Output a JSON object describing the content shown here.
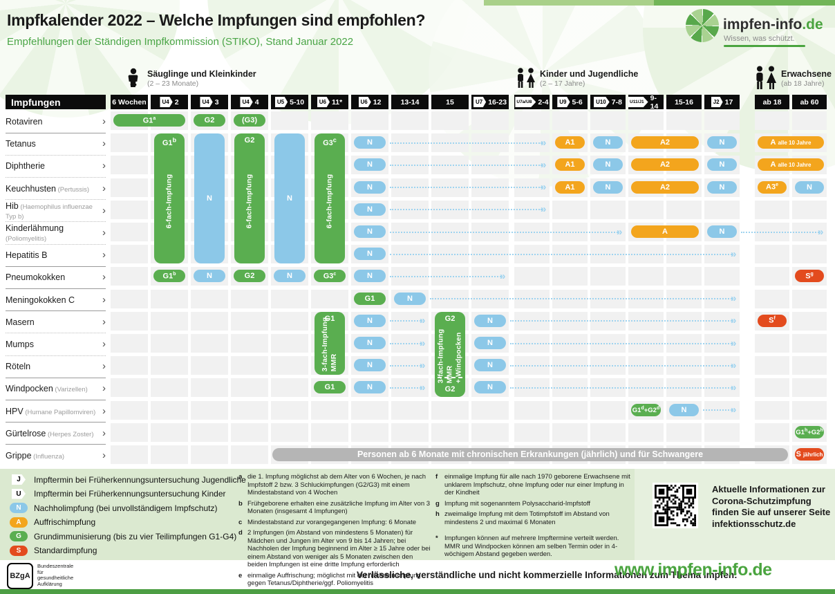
{
  "meta": {
    "title": "Impfkalender 2022 – Welche Impfungen sind empfohlen?",
    "subtitle": "Empfehlungen der Ständigen Impfkommission (STIKO), Stand Januar 2022"
  },
  "logo": {
    "name_main": "impfen-info",
    "name_suffix": ".de",
    "tagline": "Wissen, was schützt."
  },
  "groups": [
    {
      "label": "Säuglinge und Kleinkinder",
      "sub": "(2 – 23 Monate)"
    },
    {
      "label": "Kinder und Jugendliche",
      "sub": "(2 – 17 Jahre)"
    },
    {
      "label": "Erwachsene",
      "sub": "(ab 18 Jahre)"
    }
  ],
  "table": {
    "header": "Impfungen"
  },
  "columns": [
    {
      "label": "6 Wochen"
    },
    {
      "label": "2",
      "badge": "U4"
    },
    {
      "label": "3",
      "badge": "U4"
    },
    {
      "label": "4",
      "badge": "U4"
    },
    {
      "label": "5-10",
      "badge": "U5"
    },
    {
      "label": "11*",
      "badge": "U6"
    },
    {
      "label": "12",
      "badge": "U6"
    },
    {
      "label": "13-14"
    },
    {
      "label": "15"
    },
    {
      "label": "16-23",
      "badge": "U7"
    },
    {
      "label": "2-4",
      "badge": "U7a/U8"
    },
    {
      "label": "5-6",
      "badge": "U9"
    },
    {
      "label": "7-8",
      "badge": "U10"
    },
    {
      "label": "9-14",
      "badge": "U11/J1"
    },
    {
      "label": "15-16"
    },
    {
      "label": "17",
      "badge": "J2"
    },
    {
      "label": "ab 18"
    },
    {
      "label": "ab 60"
    }
  ],
  "rows": [
    {
      "label": "Rotaviren",
      "note": "",
      "sep": "solid"
    },
    {
      "label": "Tetanus",
      "note": "",
      "sep": "dotted"
    },
    {
      "label": "Diphtherie",
      "note": "",
      "sep": "dotted"
    },
    {
      "label": "Keuchhusten",
      "note": "(Pertussis)",
      "sep": "dotted"
    },
    {
      "label": "Hib",
      "note": "(Haemophilus influenzae Typ b)",
      "sep": "dotted"
    },
    {
      "label": "Kinderlähmung",
      "note": "(Poliomyelitis)",
      "sep": "dotted"
    },
    {
      "label": "Hepatitis B",
      "note": "",
      "sep": "solid"
    },
    {
      "label": "Pneumokokken",
      "note": "",
      "sep": "solid"
    },
    {
      "label": "Meningokokken C",
      "note": "",
      "sep": "solid"
    },
    {
      "label": "Masern",
      "note": "",
      "sep": "dotted"
    },
    {
      "label": "Mumps",
      "note": "",
      "sep": "dotted"
    },
    {
      "label": "Röteln",
      "note": "",
      "sep": "solid"
    },
    {
      "label": "Windpocken",
      "note": "(Varizellen)",
      "sep": "solid"
    },
    {
      "label": "HPV",
      "note": "(Humane Papillomviren)",
      "sep": "solid"
    },
    {
      "label": "Gürtelrose",
      "note": "(Herpes Zoster)",
      "sep": "solid"
    },
    {
      "label": "Grippe",
      "note": "(Influenza)",
      "sep": "none"
    }
  ],
  "pills": [
    {
      "r": 1,
      "c": 1,
      "ce": 2,
      "t": "G",
      "p": [
        [
          "G1",
          "a"
        ]
      ]
    },
    {
      "r": 1,
      "c": 3,
      "t": "G",
      "p": [
        [
          "G2",
          ""
        ]
      ]
    },
    {
      "r": 1,
      "c": 4,
      "t": "G",
      "p": [
        [
          "(G3)",
          ""
        ]
      ]
    },
    {
      "r": 2,
      "c": 7,
      "t": "N",
      "p": [
        [
          "N",
          ""
        ]
      ]
    },
    {
      "r": 2,
      "c": 12,
      "t": "A",
      "p": [
        [
          "A1",
          ""
        ]
      ]
    },
    {
      "r": 2,
      "c": 13,
      "t": "N",
      "p": [
        [
          "N",
          ""
        ]
      ]
    },
    {
      "r": 2,
      "c": 14,
      "ce": 15,
      "t": "A",
      "p": [
        [
          "A2",
          ""
        ]
      ]
    },
    {
      "r": 2,
      "c": 16,
      "t": "N",
      "p": [
        [
          "N",
          ""
        ]
      ]
    },
    {
      "r": 2,
      "c": 17,
      "ce": 18,
      "t": "A",
      "p": [
        [
          "A",
          ""
        ]
      ],
      "sfx": "alle 10 Jahre"
    },
    {
      "r": 3,
      "c": 7,
      "t": "N",
      "p": [
        [
          "N",
          ""
        ]
      ]
    },
    {
      "r": 3,
      "c": 12,
      "t": "A",
      "p": [
        [
          "A1",
          ""
        ]
      ]
    },
    {
      "r": 3,
      "c": 13,
      "t": "N",
      "p": [
        [
          "N",
          ""
        ]
      ]
    },
    {
      "r": 3,
      "c": 14,
      "ce": 15,
      "t": "A",
      "p": [
        [
          "A2",
          ""
        ]
      ]
    },
    {
      "r": 3,
      "c": 16,
      "t": "N",
      "p": [
        [
          "N",
          ""
        ]
      ]
    },
    {
      "r": 3,
      "c": 17,
      "ce": 18,
      "t": "A",
      "p": [
        [
          "A",
          ""
        ]
      ],
      "sfx": "alle 10 Jahre"
    },
    {
      "r": 4,
      "c": 7,
      "t": "N",
      "p": [
        [
          "N",
          ""
        ]
      ]
    },
    {
      "r": 4,
      "c": 12,
      "t": "A",
      "p": [
        [
          "A1",
          ""
        ]
      ]
    },
    {
      "r": 4,
      "c": 13,
      "t": "N",
      "p": [
        [
          "N",
          ""
        ]
      ]
    },
    {
      "r": 4,
      "c": 14,
      "ce": 15,
      "t": "A",
      "p": [
        [
          "A2",
          ""
        ]
      ]
    },
    {
      "r": 4,
      "c": 16,
      "t": "N",
      "p": [
        [
          "N",
          ""
        ]
      ]
    },
    {
      "r": 4,
      "c": 17,
      "t": "A",
      "p": [
        [
          "A3",
          "e"
        ]
      ]
    },
    {
      "r": 4,
      "c": 18,
      "t": "N",
      "p": [
        [
          "N",
          ""
        ]
      ]
    },
    {
      "r": 5,
      "c": 7,
      "t": "N",
      "p": [
        [
          "N",
          ""
        ]
      ]
    },
    {
      "r": 6,
      "c": 7,
      "t": "N",
      "p": [
        [
          "N",
          ""
        ]
      ]
    },
    {
      "r": 6,
      "c": 14,
      "ce": 15,
      "t": "A",
      "p": [
        [
          "A",
          ""
        ]
      ]
    },
    {
      "r": 6,
      "c": 16,
      "t": "N",
      "p": [
        [
          "N",
          ""
        ]
      ]
    },
    {
      "r": 7,
      "c": 7,
      "t": "N",
      "p": [
        [
          "N",
          ""
        ]
      ]
    },
    {
      "r": 8,
      "c": 2,
      "t": "G",
      "p": [
        [
          "G1",
          "b"
        ]
      ]
    },
    {
      "r": 8,
      "c": 3,
      "t": "N",
      "p": [
        [
          "N",
          ""
        ]
      ]
    },
    {
      "r": 8,
      "c": 4,
      "t": "G",
      "p": [
        [
          "G2",
          ""
        ]
      ]
    },
    {
      "r": 8,
      "c": 5,
      "t": "N",
      "p": [
        [
          "N",
          ""
        ]
      ]
    },
    {
      "r": 8,
      "c": 6,
      "t": "G",
      "p": [
        [
          "G3",
          "c"
        ]
      ]
    },
    {
      "r": 8,
      "c": 7,
      "t": "N",
      "p": [
        [
          "N",
          ""
        ]
      ]
    },
    {
      "r": 8,
      "c": 18,
      "t": "S",
      "p": [
        [
          "S",
          "g"
        ]
      ]
    },
    {
      "r": 9,
      "c": 7,
      "t": "G",
      "p": [
        [
          "G1",
          ""
        ]
      ]
    },
    {
      "r": 9,
      "c": 8,
      "t": "N",
      "p": [
        [
          "N",
          ""
        ]
      ]
    },
    {
      "r": 10,
      "c": 7,
      "t": "N",
      "p": [
        [
          "N",
          ""
        ]
      ]
    },
    {
      "r": 10,
      "c": 10,
      "t": "N",
      "p": [
        [
          "N",
          ""
        ]
      ]
    },
    {
      "r": 10,
      "c": 17,
      "t": "S",
      "p": [
        [
          "S",
          "f"
        ]
      ]
    },
    {
      "r": 11,
      "c": 7,
      "t": "N",
      "p": [
        [
          "N",
          ""
        ]
      ]
    },
    {
      "r": 11,
      "c": 10,
      "t": "N",
      "p": [
        [
          "N",
          ""
        ]
      ]
    },
    {
      "r": 12,
      "c": 7,
      "t": "N",
      "p": [
        [
          "N",
          ""
        ]
      ]
    },
    {
      "r": 12,
      "c": 10,
      "t": "N",
      "p": [
        [
          "N",
          ""
        ]
      ]
    },
    {
      "r": 13,
      "c": 6,
      "t": "G",
      "p": [
        [
          "G1",
          ""
        ]
      ]
    },
    {
      "r": 13,
      "c": 7,
      "t": "N",
      "p": [
        [
          "N",
          ""
        ]
      ]
    },
    {
      "r": 13,
      "c": 10,
      "t": "N",
      "p": [
        [
          "N",
          ""
        ]
      ]
    },
    {
      "r": 14,
      "c": 14,
      "t": "G",
      "p": [
        [
          "G1",
          "d"
        ],
        [
          "+G2",
          "d"
        ]
      ]
    },
    {
      "r": 14,
      "c": 15,
      "t": "N",
      "p": [
        [
          "N",
          ""
        ]
      ]
    },
    {
      "r": 15,
      "c": 18,
      "t": "G",
      "p": [
        [
          "G1",
          "h"
        ],
        [
          "+G2",
          "h"
        ]
      ]
    },
    {
      "r": 16,
      "c": 18,
      "t": "S",
      "p": [
        [
          "S",
          ""
        ]
      ],
      "sfx": "jährlich"
    }
  ],
  "bars": [
    {
      "c": 2,
      "r1": 2,
      "r2": 7,
      "t": "G",
      "top": [
        [
          "G1",
          "b"
        ]
      ],
      "v": "6-fach-Impfung"
    },
    {
      "c": 3,
      "r1": 2,
      "r2": 7,
      "t": "N",
      "mid": "N"
    },
    {
      "c": 4,
      "r1": 2,
      "r2": 7,
      "t": "G",
      "top": [
        [
          "G2",
          ""
        ]
      ],
      "v": "6-fach-Impfung"
    },
    {
      "c": 5,
      "r1": 2,
      "r2": 7,
      "t": "N",
      "mid": "N"
    },
    {
      "c": 6,
      "r1": 2,
      "r2": 7,
      "t": "G",
      "top": [
        [
          "G3",
          "c"
        ]
      ],
      "v": "6-fach-Impfung"
    },
    {
      "c": 6,
      "r1": 10,
      "r2": 12,
      "t": "G",
      "top": [
        [
          "G1",
          ""
        ]
      ],
      "v": "3-fach-Impfung\nMMR"
    },
    {
      "c": 9,
      "r1": 10,
      "r2": 13,
      "t": "G",
      "top": [
        [
          "G2",
          ""
        ]
      ],
      "v": "3-fach-Impfung\nMMR\n+ Windpocken",
      "bottom": [
        [
          "G2",
          ""
        ]
      ],
      "dash": true
    }
  ],
  "arrows": [
    {
      "r": 2,
      "a": 7,
      "b": 11
    },
    {
      "r": 3,
      "a": 7,
      "b": 11
    },
    {
      "r": 4,
      "a": 7,
      "b": 11
    },
    {
      "r": 5,
      "a": 7,
      "b": 11
    },
    {
      "r": 6,
      "a": 7,
      "b": 13
    },
    {
      "r": 6,
      "a": 16,
      "b": 18
    },
    {
      "r": 7,
      "a": 7,
      "b": 16
    },
    {
      "r": 8,
      "a": 7,
      "b": 10
    },
    {
      "r": 9,
      "a": 8,
      "b": 16
    },
    {
      "r": 10,
      "a": 7,
      "b": 8
    },
    {
      "r": 10,
      "a": 10,
      "b": 16
    },
    {
      "r": 11,
      "a": 7,
      "b": 8
    },
    {
      "r": 11,
      "a": 10,
      "b": 16
    },
    {
      "r": 12,
      "a": 7,
      "b": 8
    },
    {
      "r": 12,
      "a": 10,
      "b": 16
    },
    {
      "r": 13,
      "a": 7,
      "b": 8
    },
    {
      "r": 13,
      "a": 10,
      "b": 16
    },
    {
      "r": 14,
      "a": 15,
      "b": 16
    }
  ],
  "banner": {
    "r": 16,
    "c": 5,
    "ce": 17,
    "label": "Personen ab 6 Monate mit chronischen Erkrankungen (jährlich) und für Schwangere"
  },
  "legend": [
    {
      "key": "J",
      "style": "badge",
      "label": "Impftermin bei Früherkennungsuntersuchung Jugendliche"
    },
    {
      "key": "U",
      "style": "badge",
      "label": "Impftermin bei Früherkennungsuntersuchung Kinder"
    },
    {
      "key": "N",
      "style": "N",
      "label": "Nachholimpfung (bei unvollständigem Impfschutz)"
    },
    {
      "key": "A",
      "style": "A",
      "label": "Auffrischimpfung"
    },
    {
      "key": "G",
      "style": "G",
      "label": "Grundimmunisierung (bis zu vier Teilimpfungen G1-G4)"
    },
    {
      "key": "S",
      "style": "S",
      "label": "Standardimpfung"
    }
  ],
  "footnotes_col1": [
    {
      "key": "a",
      "text": "die 1. Impfung möglichst ab dem Alter von 6 Wochen, je nach Impfstoff 2 bzw. 3 Schluckimpfungen (G2/G3) mit einem Mindestabstand von 4 Wochen"
    },
    {
      "key": "b",
      "text": "Frühgeborene erhalten eine zusätzliche Impfung im Alter von 3 Monaten (insgesamt 4 Impfungen)"
    },
    {
      "key": "c",
      "text": "Mindestabstand zur vorangegangenen Impfung: 6 Monate"
    },
    {
      "key": "d",
      "text": "2 Impfungen (im Abstand von mindestens 5 Monaten) für Mädchen und Jungen im Alter von 9 bis 14 Jahren; bei Nachholen der Impfung beginnend im Alter ≥ 15 Jahre oder bei einem Abstand von weniger als 5 Monaten zwischen den beiden Impfungen ist eine dritte Impfung erforderlich"
    },
    {
      "key": "e",
      "text": "einmalige Auffrischung; möglichst mit der nächsten Impfung gegen Tetanus/Diphtherie/ggf. Poliomyelitis"
    }
  ],
  "footnotes_col2": [
    {
      "key": "f",
      "text": "einmalige Impfung für alle nach 1970 geborene Erwachsene mit unklarem Impfschutz, ohne Impfung oder nur einer Impfung in der Kindheit"
    },
    {
      "key": "g",
      "text": "Impfung mit sogenanntem Polysaccharid-Impfstoff"
    },
    {
      "key": "h",
      "text": "zweimalige Impfung mit dem Totimpfstoff im Abstand von mindestens 2 und maximal 6 Monaten"
    },
    {
      "key": "*",
      "text": "Impfungen können auf mehrere Impftermine verteilt werden. MMR und Windpocken können am selben Termin oder in 4-wöchigem Abstand gegeben werden.",
      "gap": true
    }
  ],
  "corona": {
    "text": "Aktuelle Informationen zur Corona-Schutzimpfung finden Sie auf unserer Seite infektionsschutz.de"
  },
  "footer": {
    "bzga": "BZgA",
    "bzga_sub": "Bundeszentrale\nfür\ngesundheitliche\nAufklärung",
    "text": "Verlässliche, verständliche und nicht kommerzielle Informationen zum Thema Impfen:",
    "url": "www.impfen-info.de"
  },
  "colors": {
    "green": "#5aae50",
    "blue": "#8cc8e8",
    "orange": "#f3a51d",
    "red": "#e34b1e",
    "banner_gray": "#b5b5b5",
    "header_black": "#0c0c0c",
    "cell_gray": "#f1f1f1",
    "legend_bg": "#dbe9d0",
    "accent_green": "#4aa43f"
  },
  "glyphs": {
    "arrowhead": "»",
    "row_chevron": "›"
  }
}
